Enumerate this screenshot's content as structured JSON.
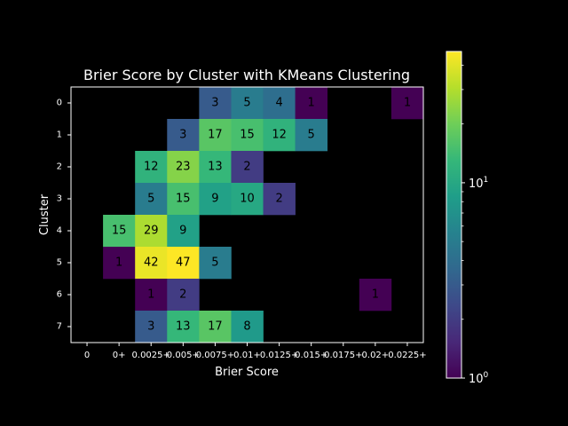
{
  "chart_data": {
    "type": "heatmap",
    "title": "Brier Score by Cluster with KMeans Clustering",
    "xlabel": "Brier Score",
    "ylabel": "Cluster",
    "x_categories": [
      "0",
      "0+",
      "0.0025+",
      "0.005+",
      "0.0075+",
      "0.01+",
      "0.0125+",
      "0.015+",
      "0.0175+",
      "0.02+",
      "0.0225+"
    ],
    "y_categories": [
      "0",
      "1",
      "2",
      "3",
      "4",
      "5",
      "6",
      "7"
    ],
    "values": [
      [
        null,
        null,
        null,
        null,
        3,
        5,
        4,
        1,
        null,
        null,
        1
      ],
      [
        null,
        null,
        null,
        3,
        17,
        15,
        12,
        5,
        null,
        null,
        null
      ],
      [
        null,
        null,
        12,
        23,
        13,
        2,
        null,
        null,
        null,
        null,
        null
      ],
      [
        null,
        null,
        5,
        15,
        9,
        10,
        2,
        null,
        null,
        null,
        null
      ],
      [
        null,
        15,
        29,
        9,
        null,
        null,
        null,
        null,
        null,
        null,
        null
      ],
      [
        null,
        1,
        42,
        47,
        5,
        null,
        null,
        null,
        null,
        null,
        null
      ],
      [
        null,
        null,
        1,
        2,
        null,
        null,
        null,
        null,
        null,
        1,
        null
      ],
      [
        null,
        null,
        3,
        13,
        17,
        8,
        null,
        null,
        null,
        null,
        null
      ]
    ],
    "colorscale": "viridis",
    "color_scale_type": "log",
    "colorbar_range": [
      1,
      47
    ],
    "colorbar_ticks": [
      {
        "base": "10",
        "exp": "0",
        "value": 1
      },
      {
        "base": "10",
        "exp": "1",
        "value": 10
      }
    ],
    "background": "#000000",
    "text_color": "#ffffff"
  }
}
